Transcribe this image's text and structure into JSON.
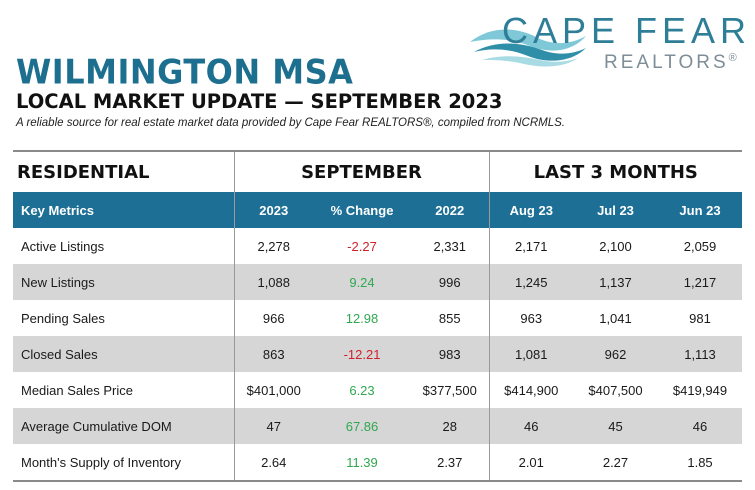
{
  "logo": {
    "brand": "CAPE FEAR",
    "sub": "REALTORS",
    "reg": "®"
  },
  "title": "WILMINGTON MSA",
  "subtitle": "LOCAL MARKET UPDATE — SEPTEMBER 2023",
  "tagline": "A reliable source for real estate market data provided by Cape Fear REALTORS®, compiled from NCRMLS.",
  "colors": {
    "header_blue": "#1d6f96",
    "title_blue": "#1d6f8f",
    "negative": "#d0202a",
    "positive": "#2fa84f",
    "stripe": "#d6d6d6"
  },
  "table": {
    "section_label": "RESIDENTIAL",
    "group_september": "SEPTEMBER",
    "group_last3": "LAST 3 MONTHS",
    "columns": [
      "Key Metrics",
      "2023",
      "% Change",
      "2022",
      "Aug 23",
      "Jul 23",
      "Jun 23"
    ],
    "rows": [
      {
        "metric": "Active Listings",
        "y2023": "2,278",
        "change": "-2.27",
        "y2022": "2,331",
        "aug": "2,171",
        "jul": "2,100",
        "jun": "2,059"
      },
      {
        "metric": "New Listings",
        "y2023": "1,088",
        "change": "9.24",
        "y2022": "996",
        "aug": "1,245",
        "jul": "1,137",
        "jun": "1,217"
      },
      {
        "metric": "Pending Sales",
        "y2023": "966",
        "change": "12.98",
        "y2022": "855",
        "aug": "963",
        "jul": "1,041",
        "jun": "981"
      },
      {
        "metric": "Closed Sales",
        "y2023": "863",
        "change": "-12.21",
        "y2022": "983",
        "aug": "1,081",
        "jul": "962",
        "jun": "1,113"
      },
      {
        "metric": "Median Sales Price",
        "y2023": "$401,000",
        "change": "6.23",
        "y2022": "$377,500",
        "aug": "$414,900",
        "jul": "$407,500",
        "jun": "$419,949"
      },
      {
        "metric": "Average Cumulative DOM",
        "y2023": "47",
        "change": "67.86",
        "y2022": "28",
        "aug": "46",
        "jul": "45",
        "jun": "46"
      },
      {
        "metric": "Month's Supply of Inventory",
        "y2023": "2.64",
        "change": "11.39",
        "y2022": "2.37",
        "aug": "2.01",
        "jul": "2.27",
        "jun": "1.85"
      }
    ]
  }
}
